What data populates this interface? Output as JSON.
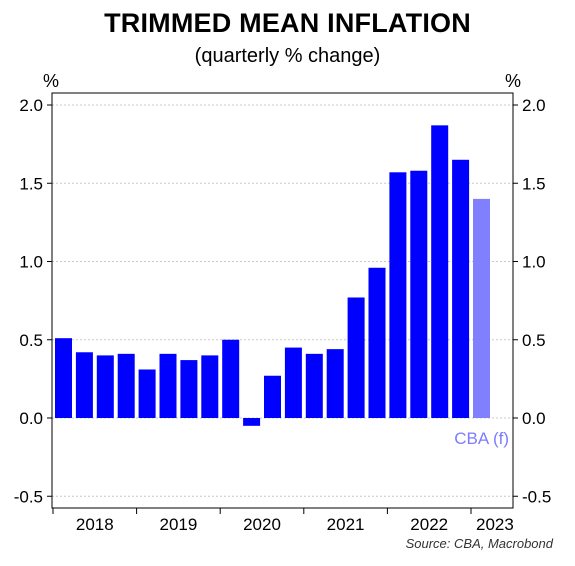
{
  "chart_data": {
    "type": "bar",
    "title": "TRIMMED MEAN INFLATION",
    "subtitle": "(quarterly % change)",
    "ylabel_left": "%",
    "ylabel_right": "%",
    "ylim": [
      -0.6,
      2.0
    ],
    "yticks": [
      "2.0",
      "1.5",
      "1.0",
      "0.5",
      "0.0",
      "-0.5"
    ],
    "ytick_values": [
      2.0,
      1.5,
      1.0,
      0.5,
      0.0,
      -0.5
    ],
    "grid": true,
    "x_labels": [
      "2018",
      "2019",
      "2020",
      "2021",
      "2022",
      "2023"
    ],
    "series": [
      {
        "values": [
          0.51,
          0.42,
          0.4,
          0.41,
          0.31,
          0.41,
          0.37,
          0.4,
          0.5,
          -0.05,
          0.27,
          0.45,
          0.41,
          0.44,
          0.77,
          0.96,
          1.57,
          1.58,
          1.87,
          1.65
        ],
        "color": "#0000ff"
      },
      {
        "name": "CBA (f)",
        "values": [
          null,
          null,
          null,
          null,
          null,
          null,
          null,
          null,
          null,
          null,
          null,
          null,
          null,
          null,
          null,
          null,
          null,
          null,
          null,
          null,
          1.4
        ],
        "color": "#8080ff"
      }
    ],
    "annotation": "CBA (f)",
    "source": "Source: CBA, Macrobond"
  }
}
